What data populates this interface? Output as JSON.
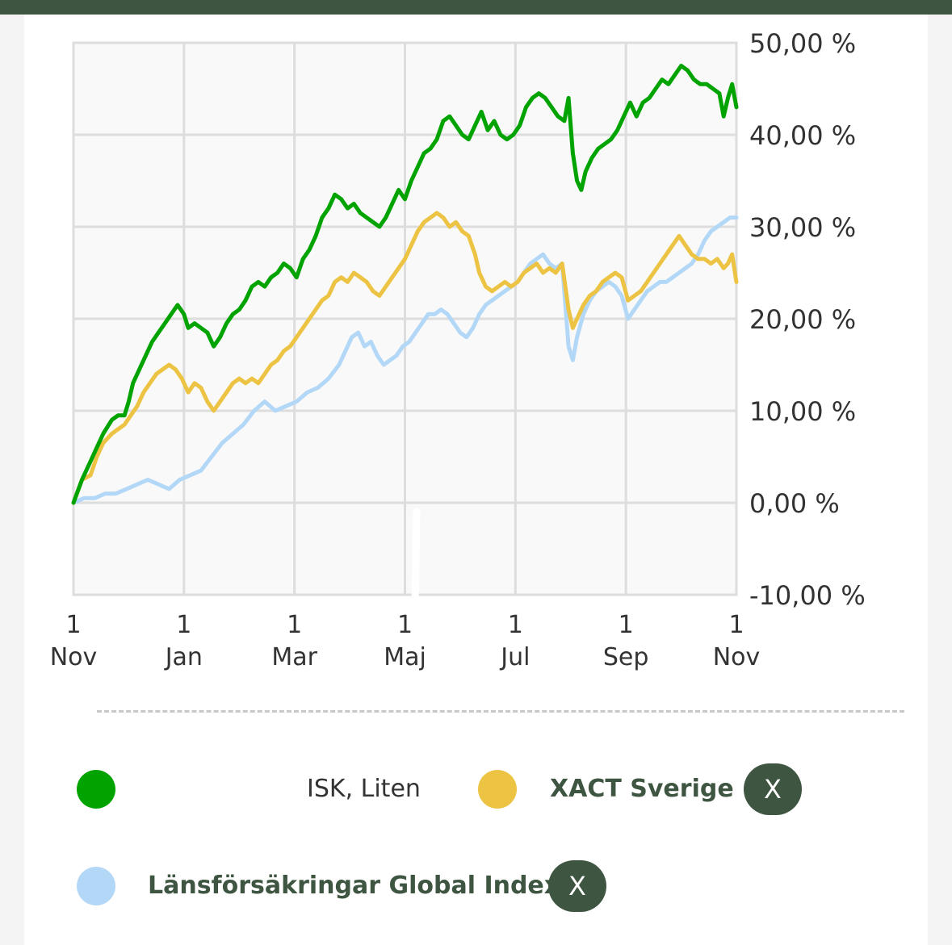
{
  "colors": {
    "header_bar": "#3e5641",
    "series_green": "#00a300",
    "series_yellow": "#ecc343",
    "series_blue": "#b3d8f7",
    "button_bg": "#3e5641",
    "plot_bg": "#f9f9f9",
    "grid": "#dddddd"
  },
  "legend": {
    "items": [
      {
        "label": "ISK, Liten",
        "color": "#00a300",
        "removable": false
      },
      {
        "label": "XACT Sverige",
        "color": "#ecc343",
        "removable": true,
        "remove_label": "X"
      },
      {
        "label": "Länsförsäkringar Global Index",
        "color": "#b3d8f7",
        "removable": true,
        "remove_label": "X"
      }
    ]
  },
  "chart_data": {
    "type": "line",
    "title": "",
    "xlabel": "",
    "ylabel": "",
    "ylim": [
      -10,
      50
    ],
    "y_ticks": [
      "50,00 %",
      "40,00 %",
      "30,00 %",
      "20,00 %",
      "10,00 %",
      "0,00 %",
      "-10,00 %"
    ],
    "y_tick_values": [
      50,
      40,
      30,
      20,
      10,
      0,
      -10
    ],
    "x_ticks": [
      {
        "day": "1",
        "month": "Nov"
      },
      {
        "day": "1",
        "month": "Jan"
      },
      {
        "day": "1",
        "month": "Mar"
      },
      {
        "day": "1",
        "month": "Maj"
      },
      {
        "day": "1",
        "month": "Jul"
      },
      {
        "day": "1",
        "month": "Sep"
      },
      {
        "day": "1",
        "month": "Nov"
      }
    ],
    "grid": true,
    "legend_position": "bottom",
    "series": [
      {
        "name": "ISK, Liten",
        "color": "#00a300",
        "points": [
          [
            0,
            0
          ],
          [
            4,
            2.5
          ],
          [
            8,
            4.5
          ],
          [
            11,
            6
          ],
          [
            14,
            7.5
          ],
          [
            18,
            9
          ],
          [
            21,
            9.5
          ],
          [
            24,
            9.5
          ],
          [
            26,
            11
          ],
          [
            28,
            13
          ],
          [
            31,
            14.5
          ],
          [
            34,
            16
          ],
          [
            37,
            17.5
          ],
          [
            40,
            18.5
          ],
          [
            43,
            19.5
          ],
          [
            46,
            20.5
          ],
          [
            49,
            21.5
          ],
          [
            52,
            20.5
          ],
          [
            54,
            19
          ],
          [
            57,
            19.5
          ],
          [
            60,
            19
          ],
          [
            63,
            18.5
          ],
          [
            66,
            17
          ],
          [
            69,
            18
          ],
          [
            72,
            19.5
          ],
          [
            75,
            20.5
          ],
          [
            78,
            21
          ],
          [
            81,
            22
          ],
          [
            84,
            23.5
          ],
          [
            87,
            24
          ],
          [
            90,
            23.5
          ],
          [
            93,
            24.5
          ],
          [
            96,
            25
          ],
          [
            99,
            26
          ],
          [
            102,
            25.5
          ],
          [
            105,
            24.5
          ],
          [
            108,
            26.5
          ],
          [
            111,
            27.5
          ],
          [
            114,
            29
          ],
          [
            117,
            31
          ],
          [
            120,
            32
          ],
          [
            123,
            33.5
          ],
          [
            126,
            33
          ],
          [
            129,
            32
          ],
          [
            132,
            32.5
          ],
          [
            135,
            31.5
          ],
          [
            138,
            31
          ],
          [
            141,
            30.5
          ],
          [
            144,
            30
          ],
          [
            147,
            31
          ],
          [
            150,
            32.5
          ],
          [
            153,
            34
          ],
          [
            156,
            33
          ],
          [
            159,
            35
          ],
          [
            162,
            36.5
          ],
          [
            165,
            38
          ],
          [
            168,
            38.5
          ],
          [
            171,
            39.5
          ],
          [
            174,
            41.5
          ],
          [
            177,
            42
          ],
          [
            180,
            41
          ],
          [
            183,
            40
          ],
          [
            186,
            39.5
          ],
          [
            189,
            41
          ],
          [
            192,
            42.5
          ],
          [
            195,
            40.5
          ],
          [
            198,
            41.5
          ],
          [
            201,
            40
          ],
          [
            204,
            39.5
          ],
          [
            207,
            40
          ],
          [
            210,
            41
          ],
          [
            213,
            43
          ],
          [
            216,
            44
          ],
          [
            219,
            44.5
          ],
          [
            222,
            44
          ],
          [
            225,
            43
          ],
          [
            228,
            42
          ],
          [
            231,
            41.5
          ],
          [
            233,
            44
          ],
          [
            235,
            38
          ],
          [
            237,
            35
          ],
          [
            239,
            34
          ],
          [
            241,
            36
          ],
          [
            244,
            37.5
          ],
          [
            247,
            38.5
          ],
          [
            250,
            39
          ],
          [
            253,
            39.5
          ],
          [
            256,
            40.5
          ],
          [
            259,
            42
          ],
          [
            262,
            43.5
          ],
          [
            265,
            42
          ],
          [
            268,
            43.5
          ],
          [
            271,
            44
          ],
          [
            274,
            45
          ],
          [
            277,
            46
          ],
          [
            280,
            45.5
          ],
          [
            283,
            46.5
          ],
          [
            286,
            47.5
          ],
          [
            289,
            47
          ],
          [
            292,
            46
          ],
          [
            295,
            45.5
          ],
          [
            298,
            45.5
          ],
          [
            301,
            45
          ],
          [
            304,
            44.5
          ],
          [
            306,
            42
          ],
          [
            308,
            44
          ],
          [
            310,
            45.5
          ],
          [
            312,
            43
          ]
        ]
      },
      {
        "name": "XACT Sverige",
        "color": "#ecc343",
        "points": [
          [
            0,
            0
          ],
          [
            4,
            2.5
          ],
          [
            8,
            3
          ],
          [
            11,
            5
          ],
          [
            14,
            6.5
          ],
          [
            18,
            7.5
          ],
          [
            21,
            8
          ],
          [
            24,
            8.5
          ],
          [
            27,
            9.5
          ],
          [
            30,
            10.5
          ],
          [
            33,
            12
          ],
          [
            36,
            13
          ],
          [
            39,
            14
          ],
          [
            42,
            14.5
          ],
          [
            45,
            15
          ],
          [
            48,
            14.5
          ],
          [
            51,
            13.5
          ],
          [
            54,
            12
          ],
          [
            57,
            13
          ],
          [
            60,
            12.5
          ],
          [
            63,
            11
          ],
          [
            66,
            10
          ],
          [
            69,
            11
          ],
          [
            72,
            12
          ],
          [
            75,
            13
          ],
          [
            78,
            13.5
          ],
          [
            81,
            13
          ],
          [
            84,
            13.5
          ],
          [
            87,
            13
          ],
          [
            90,
            14
          ],
          [
            93,
            15
          ],
          [
            96,
            15.5
          ],
          [
            99,
            16.5
          ],
          [
            102,
            17
          ],
          [
            105,
            18
          ],
          [
            108,
            19
          ],
          [
            111,
            20
          ],
          [
            114,
            21
          ],
          [
            117,
            22
          ],
          [
            120,
            22.5
          ],
          [
            123,
            24
          ],
          [
            126,
            24.5
          ],
          [
            129,
            24
          ],
          [
            132,
            25
          ],
          [
            135,
            24.5
          ],
          [
            138,
            24
          ],
          [
            141,
            23
          ],
          [
            144,
            22.5
          ],
          [
            147,
            23.5
          ],
          [
            150,
            24.5
          ],
          [
            153,
            25.5
          ],
          [
            156,
            26.5
          ],
          [
            159,
            28
          ],
          [
            162,
            29.5
          ],
          [
            165,
            30.5
          ],
          [
            168,
            31
          ],
          [
            171,
            31.5
          ],
          [
            174,
            31
          ],
          [
            177,
            30
          ],
          [
            180,
            30.5
          ],
          [
            183,
            29.5
          ],
          [
            186,
            29
          ],
          [
            189,
            27
          ],
          [
            191,
            25
          ],
          [
            194,
            23.5
          ],
          [
            197,
            23
          ],
          [
            200,
            23.5
          ],
          [
            203,
            24
          ],
          [
            206,
            23.5
          ],
          [
            209,
            24
          ],
          [
            212,
            25
          ],
          [
            215,
            25.5
          ],
          [
            218,
            26
          ],
          [
            221,
            25
          ],
          [
            224,
            25.5
          ],
          [
            227,
            25
          ],
          [
            230,
            26
          ],
          [
            233,
            21
          ],
          [
            235,
            19
          ],
          [
            237,
            20
          ],
          [
            240,
            21.5
          ],
          [
            243,
            22.5
          ],
          [
            246,
            23
          ],
          [
            249,
            24
          ],
          [
            252,
            24.5
          ],
          [
            255,
            25
          ],
          [
            258,
            24.5
          ],
          [
            261,
            22
          ],
          [
            264,
            22.5
          ],
          [
            267,
            23
          ],
          [
            270,
            24
          ],
          [
            273,
            25
          ],
          [
            276,
            26
          ],
          [
            279,
            27
          ],
          [
            282,
            28
          ],
          [
            285,
            29
          ],
          [
            288,
            28
          ],
          [
            291,
            27
          ],
          [
            294,
            26.5
          ],
          [
            297,
            26.5
          ],
          [
            300,
            26
          ],
          [
            303,
            26.5
          ],
          [
            306,
            25.5
          ],
          [
            308,
            26
          ],
          [
            310,
            27
          ],
          [
            312,
            24
          ]
        ]
      },
      {
        "name": "Länsförsäkringar Global Index",
        "color": "#b3d8f7",
        "points": [
          [
            0,
            0
          ],
          [
            5,
            0.5
          ],
          [
            10,
            0.5
          ],
          [
            15,
            1
          ],
          [
            20,
            1
          ],
          [
            25,
            1.5
          ],
          [
            30,
            2
          ],
          [
            35,
            2.5
          ],
          [
            40,
            2
          ],
          [
            45,
            1.5
          ],
          [
            50,
            2.5
          ],
          [
            55,
            3
          ],
          [
            60,
            3.5
          ],
          [
            65,
            5
          ],
          [
            70,
            6.5
          ],
          [
            75,
            7.5
          ],
          [
            80,
            8.5
          ],
          [
            85,
            10
          ],
          [
            90,
            11
          ],
          [
            95,
            10
          ],
          [
            100,
            10.5
          ],
          [
            105,
            11
          ],
          [
            110,
            12
          ],
          [
            115,
            12.5
          ],
          [
            120,
            13.5
          ],
          [
            125,
            15
          ],
          [
            128,
            16.5
          ],
          [
            131,
            18
          ],
          [
            134,
            18.5
          ],
          [
            137,
            17
          ],
          [
            140,
            17.5
          ],
          [
            143,
            16
          ],
          [
            146,
            15
          ],
          [
            149,
            15.5
          ],
          [
            152,
            16
          ],
          [
            155,
            17
          ],
          [
            158,
            17.5
          ],
          [
            161,
            18.5
          ],
          [
            164,
            19.5
          ],
          [
            167,
            20.5
          ],
          [
            170,
            20.5
          ],
          [
            173,
            21
          ],
          [
            176,
            20.5
          ],
          [
            179,
            19.5
          ],
          [
            182,
            18.5
          ],
          [
            185,
            18
          ],
          [
            188,
            19
          ],
          [
            191,
            20.5
          ],
          [
            194,
            21.5
          ],
          [
            197,
            22
          ],
          [
            200,
            22.5
          ],
          [
            203,
            23
          ],
          [
            206,
            23.5
          ],
          [
            209,
            24
          ],
          [
            212,
            25
          ],
          [
            215,
            26
          ],
          [
            218,
            26.5
          ],
          [
            221,
            27
          ],
          [
            224,
            26
          ],
          [
            227,
            25.5
          ],
          [
            230,
            26
          ],
          [
            233,
            17
          ],
          [
            235,
            15.5
          ],
          [
            237,
            18
          ],
          [
            240,
            20.5
          ],
          [
            243,
            22
          ],
          [
            246,
            23
          ],
          [
            249,
            23.5
          ],
          [
            252,
            24
          ],
          [
            255,
            23.5
          ],
          [
            258,
            22.5
          ],
          [
            261,
            20
          ],
          [
            264,
            21
          ],
          [
            267,
            22
          ],
          [
            270,
            23
          ],
          [
            273,
            23.5
          ],
          [
            276,
            24
          ],
          [
            279,
            24
          ],
          [
            282,
            24.5
          ],
          [
            285,
            25
          ],
          [
            288,
            25.5
          ],
          [
            291,
            26
          ],
          [
            294,
            27
          ],
          [
            297,
            28.5
          ],
          [
            300,
            29.5
          ],
          [
            303,
            30
          ],
          [
            306,
            30.5
          ],
          [
            309,
            31
          ],
          [
            312,
            31
          ]
        ]
      }
    ],
    "x_domain": [
      0,
      312
    ]
  }
}
